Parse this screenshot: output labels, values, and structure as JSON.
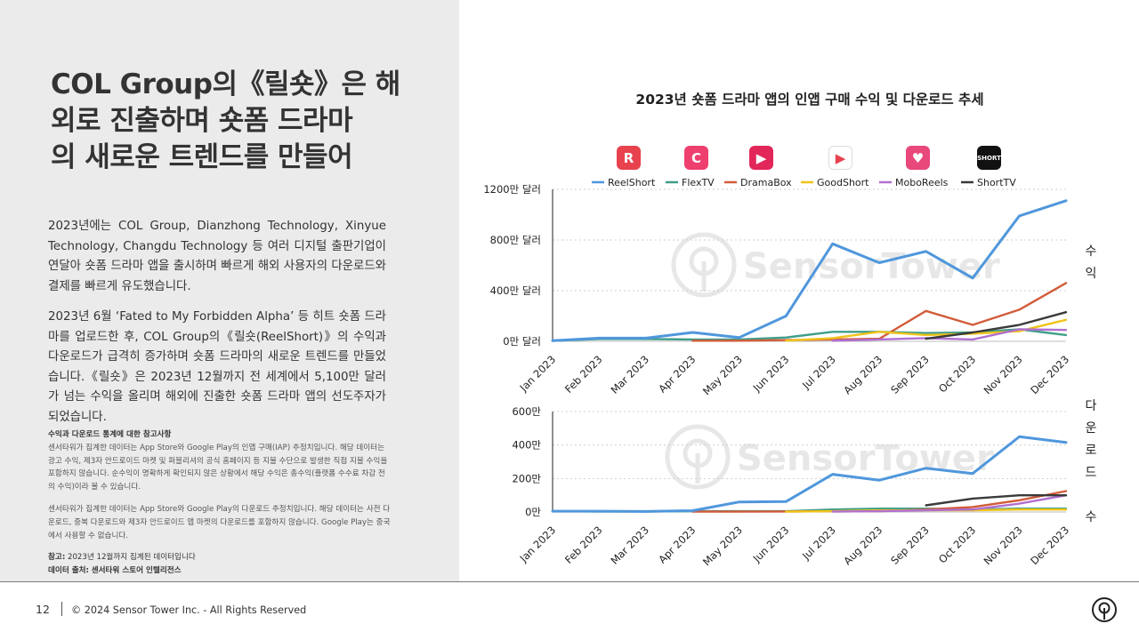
{
  "title_lines": [
    "COL Group의《릴숏》은 해",
    "외로 진출하며 숏폼 드라마",
    "의 새로운 트렌드를 만들어"
  ],
  "paragraph1": "2023년에는 COL Group, Dianzhong Technology, Xinyue Technology, Changdu Technology 등 여러 디지털 출판기업이 연달아 숏폼 드라마 앱을 출시하며 빠르게 해외 사용자의 다운로드와 결제를 빠르게 유도했습니다.",
  "paragraph2": "2023년 6월 ‘Fated to My Forbidden Alpha’ 등 히트 숏폼 드라마를 업로드한 후, COL Group의《릴숏(ReelShort)》의 수익과 다운로드가 급격히 증가하며 숏폼 드라마의 새로운 트렌드를 만들었습니다.《릴숏》은 2023년 12월까지 전 세계에서 5,100만 달러가 넘는 수익을 올리며 해외에 진출한 숏폼 드라마 앱의 선도주자가 되었습니다.",
  "notes": {
    "heading": "수익과 다운로드 통계에 대한 참고사항",
    "revenue_note": "센서타워가 집계한 데이터는 App Store와 Google Play의 인앱 구매(IAP) 추정치입니다. 해당 데이터는 광고 수익, 제3자 안드로이드 마켓 및 퍼블리셔의 공식 홈페이지 등 지불 수단으로 발생한 직접 지불 수익을 포함하지 않습니다. 순수익이 명확하게 확인되지 않은 상황에서 해당 수익은 총수익(플랫폼 수수료 차감 전의 수익)이라 볼 수 있습니다.",
    "download_note": "센서타워가 집계한 데이터는 App Store와 Google Play의 다운로드 추정치입니다. 해당 데이터는 사전 다운로드, 중복 다운로드와 제3자 안드로이드 앱 마켓의 다운로드를 포함하지 않습니다. Google Play는 중국에서 사용할 수 없습니다.",
    "ref_label": "참고:",
    "ref_text": "2023년 12월까지 집계된 데이터입니다",
    "source_label": "데이터 출처:",
    "source_text": "센서타워 스토어 인텔리전스"
  },
  "footer": {
    "page_number": "12",
    "copyright": "© 2024 Sensor Tower Inc. - All Rights Reserved"
  },
  "watermark": "SensorTower",
  "colors": {
    "ReelShort": "#4f97dc",
    "FlexTV": "#3f9e8a",
    "DramaBox": "#d25c3a",
    "GoodShort": "#f0c419",
    "MoboReels": "#b06fd0",
    "ShortTV": "#3a3a3a"
  },
  "icons": [
    {
      "app": "ReelShort",
      "icon": "reelshort-app-icon",
      "bg": "#e8424f",
      "glyph": "R"
    },
    {
      "app": "FlexTV",
      "icon": "flextv-app-icon",
      "bg": "#ee3f6e",
      "glyph": "C"
    },
    {
      "app": "DramaBox",
      "icon": "dramabox-app-icon",
      "bg": "#e2265a",
      "glyph": "▶"
    },
    {
      "app": "GoodShort",
      "icon": "goodshort-app-icon",
      "bg": "#ffffff",
      "glyph": "▶"
    },
    {
      "app": "MoboReels",
      "icon": "moboreels-app-icon",
      "bg": "#e8487a",
      "glyph": "♥"
    },
    {
      "app": "ShortTV",
      "icon": "shorttv-app-icon",
      "bg": "#111111",
      "glyph": "SHORT"
    }
  ],
  "chart_data": [
    {
      "type": "line",
      "title": "2023년 숏폼 드라마 앱의 인앱 구매 수익 및 다운로드 추세",
      "ylabel": "수익",
      "categories": [
        "Jan 2023",
        "Feb 2023",
        "Mar 2023",
        "Apr 2023",
        "May 2023",
        "Jun 2023",
        "Jul 2023",
        "Aug 2023",
        "Sep 2023",
        "Oct 2023",
        "Nov 2023",
        "Dec 2023"
      ],
      "ylim": [
        0,
        1200
      ],
      "yticks": [
        {
          "v": 0,
          "label": "0만 달러"
        },
        {
          "v": 400,
          "label": "400만 달러"
        },
        {
          "v": 800,
          "label": "800만 달러"
        },
        {
          "v": 1200,
          "label": "1200만 달러"
        }
      ],
      "grid": true,
      "legend": "top",
      "series": [
        {
          "name": "ReelShort",
          "values": [
            5,
            25,
            25,
            70,
            30,
            200,
            770,
            620,
            710,
            500,
            990,
            1110
          ]
        },
        {
          "name": "FlexTV",
          "values": [
            5,
            18,
            18,
            15,
            15,
            30,
            75,
            75,
            65,
            70,
            95,
            50
          ]
        },
        {
          "name": "DramaBox",
          "values": [
            null,
            null,
            null,
            5,
            5,
            10,
            15,
            20,
            240,
            130,
            250,
            460
          ]
        },
        {
          "name": "GoodShort",
          "values": [
            null,
            null,
            null,
            null,
            null,
            5,
            25,
            75,
            50,
            60,
            80,
            170
          ]
        },
        {
          "name": "MoboReels",
          "values": [
            null,
            null,
            null,
            null,
            null,
            null,
            5,
            15,
            25,
            15,
            95,
            90
          ]
        },
        {
          "name": "ShortTV",
          "values": [
            null,
            null,
            null,
            null,
            null,
            null,
            null,
            null,
            20,
            70,
            130,
            230
          ]
        }
      ]
    },
    {
      "type": "line",
      "ylabel": "다운로드 수",
      "categories": [
        "Jan 2023",
        "Feb 2023",
        "Mar 2023",
        "Apr 2023",
        "May 2023",
        "Jun 2023",
        "Jul 2023",
        "Aug 2023",
        "Sep 2023",
        "Oct 2023",
        "Nov 2023",
        "Dec 2023"
      ],
      "ylim": [
        0,
        600
      ],
      "yticks": [
        {
          "v": 0,
          "label": "0만"
        },
        {
          "v": 200,
          "label": "200만"
        },
        {
          "v": 400,
          "label": "400만"
        },
        {
          "v": 600,
          "label": "600만"
        }
      ],
      "grid": true,
      "series": [
        {
          "name": "ReelShort",
          "values": [
            5,
            5,
            3,
            8,
            60,
            62,
            225,
            190,
            262,
            230,
            450,
            415
          ]
        },
        {
          "name": "FlexTV",
          "values": [
            5,
            3,
            3,
            5,
            5,
            5,
            15,
            20,
            20,
            15,
            20,
            20
          ]
        },
        {
          "name": "DramaBox",
          "values": [
            null,
            null,
            null,
            2,
            2,
            3,
            5,
            5,
            15,
            30,
            70,
            125
          ]
        },
        {
          "name": "GoodShort",
          "values": [
            null,
            null,
            null,
            null,
            null,
            2,
            5,
            10,
            10,
            10,
            15,
            15
          ]
        },
        {
          "name": "MoboReels",
          "values": [
            null,
            null,
            null,
            null,
            null,
            null,
            2,
            5,
            10,
            15,
            50,
            100
          ]
        },
        {
          "name": "ShortTV",
          "values": [
            null,
            null,
            null,
            null,
            null,
            null,
            null,
            null,
            40,
            80,
            100,
            100
          ]
        }
      ]
    }
  ]
}
